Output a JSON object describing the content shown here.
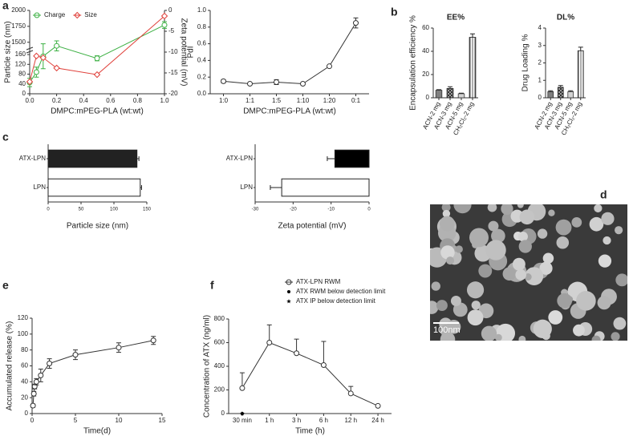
{
  "chart_data": [
    {
      "type": "line",
      "panel_label": "a",
      "xlabel": "DMPC:mPEG-PLA (wt:wt)",
      "ylabel": "Particle size (nm)",
      "y2label": "Zeta potential (mV)",
      "x": [
        0,
        0.05,
        0.1,
        0.2,
        0.5,
        1.0
      ],
      "xlim": [
        0,
        1
      ],
      "xticks": [
        {
          "value": 0,
          "label": "0.0"
        },
        {
          "value": 0.2,
          "label": "0.2"
        },
        {
          "value": 0.4,
          "label": "0.4"
        },
        {
          "value": 0.6,
          "label": "0.6"
        },
        {
          "value": 0.8,
          "label": "0.8"
        },
        {
          "value": 1,
          "label": "1.0"
        }
      ],
      "ylim": [
        0,
        2000
      ],
      "ybreak": [
        170,
        1450
      ],
      "yticks": [
        0,
        40,
        80,
        120,
        160,
        1500,
        1750,
        2000
      ],
      "y2lim": [
        -20,
        0
      ],
      "y2ticks": [
        -20,
        -15,
        -10,
        -5,
        0
      ],
      "legend": "top-left",
      "error_direction": "both",
      "series": [
        {
          "name": "Charge",
          "color": "#3cb043",
          "marker": "circle",
          "axis": "y2",
          "values": [
            -17.3,
            -14.8,
            -11,
            -8.5,
            -11.5,
            -3.5
          ],
          "errors": [
            1,
            1.2,
            3,
            1.2,
            0.6,
            0.8
          ]
        },
        {
          "name": "Size",
          "color": "#e0413b",
          "marker": "diamond",
          "values": [
            49,
            154,
            147,
            105,
            78,
            1912
          ]
        }
      ]
    },
    {
      "type": "line",
      "ylabel": "PdI",
      "xlabel": "DMPC:mPEG-PLA (wt:wt)",
      "categories": [
        "1:0",
        "1:1",
        "1:5",
        "1:10",
        "1:20",
        "0:1"
      ],
      "ylim": [
        0,
        1
      ],
      "yticks": [
        {
          "value": 0,
          "label": "0.0"
        },
        {
          "value": 0.2,
          "label": "0.2"
        },
        {
          "value": 0.4,
          "label": "0.4"
        },
        {
          "value": 0.6,
          "label": "0.6"
        },
        {
          "value": 0.8,
          "label": "0.8"
        },
        {
          "value": 1,
          "label": "1.0"
        }
      ],
      "error_direction": "both",
      "series": [
        {
          "color": "#333333",
          "marker": "circle",
          "values": [
            0.15,
            0.12,
            0.14,
            0.12,
            0.33,
            0.85
          ],
          "errors": [
            0.02,
            0.01,
            0.03,
            0.01,
            0.01,
            0.06
          ]
        }
      ]
    },
    {
      "type": "bar",
      "panel_label": "b",
      "title": "EE%",
      "ylabel": "Encapsulation efficiency %",
      "categories": [
        "ACN-2 mg",
        "ACN-3 mg",
        "ACN-5 mg",
        "CH₂Cl₂-2 mg"
      ],
      "values": [
        6.5,
        8,
        3.5,
        52
      ],
      "errors": [
        0.5,
        1.5,
        0.5,
        3
      ],
      "colors": [
        "#7f7f7f",
        "#9a9a9a",
        "#d3d3d3",
        "#ffffff"
      ],
      "hatches": [
        null,
        "checker",
        null,
        "vertical"
      ],
      "ylim": [
        0,
        60
      ],
      "yticks": [
        0,
        20,
        40,
        60
      ]
    },
    {
      "type": "bar",
      "title": "DL%",
      "ylabel": "Drug Loading %",
      "categories": [
        "ACN-2 mg",
        "ACN-3 mg",
        "ACN-5 mg",
        "CH₂Cl₂-2 mg"
      ],
      "values": [
        0.35,
        0.6,
        0.35,
        2.7
      ],
      "errors": [
        0.05,
        0.1,
        0.05,
        0.2
      ],
      "colors": [
        "#7f7f7f",
        "#9a9a9a",
        "#d3d3d3",
        "#ffffff"
      ],
      "hatches": [
        null,
        "checker",
        null,
        "vertical"
      ],
      "ylim": [
        0,
        4
      ],
      "yticks": [
        0,
        1,
        2,
        3,
        4
      ]
    },
    {
      "type": "barh",
      "panel_label": "c",
      "xlabel": "Particle size (nm)",
      "categories": [
        "ATX-LPN",
        "LPN"
      ],
      "values": [
        135,
        140
      ],
      "errors": [
        3,
        2
      ],
      "colors": [
        "#222222",
        "#ffffff"
      ],
      "xlim": [
        0,
        150
      ],
      "xticks": [
        0,
        50,
        100,
        150
      ]
    },
    {
      "type": "barh",
      "xlabel": "Zeta potential (mV)",
      "categories": [
        "ATX-LPN",
        "LPN"
      ],
      "values": [
        -9,
        -23
      ],
      "errors": [
        2,
        3
      ],
      "colors": [
        "#000000",
        "#ffffff"
      ],
      "xlim": [
        -30,
        0
      ],
      "xticks": [
        -30,
        -20,
        -10,
        0
      ]
    },
    {
      "type": "line",
      "panel_label": "e",
      "xlabel": "Time(d)",
      "ylabel": "Accumulated release (%)",
      "x": [
        0.1,
        0.2,
        0.3,
        0.5,
        1,
        2,
        5,
        10,
        14
      ],
      "xlim": [
        0,
        15
      ],
      "xticks": [
        0,
        5,
        10,
        15
      ],
      "ylim": [
        0,
        120
      ],
      "yticks": [
        0,
        20,
        40,
        60,
        80,
        100,
        120
      ],
      "error_direction": "both",
      "series": [
        {
          "color": "#333333",
          "marker": "circle",
          "values": [
            10,
            25,
            34,
            40,
            48,
            63,
            74,
            83,
            92
          ],
          "errors": [
            2,
            3,
            3,
            4,
            8,
            6,
            6,
            6,
            5
          ]
        }
      ]
    },
    {
      "type": "line",
      "panel_label": "f",
      "xlabel": "Time (h)",
      "ylabel": "Concentration of ATX (ng/ml)",
      "categories": [
        "30 min",
        "1 h",
        "3 h",
        "6 h",
        "12 h",
        "24 h"
      ],
      "ylim": [
        0,
        800
      ],
      "yticks": [
        0,
        200,
        400,
        600,
        800
      ],
      "legend": "top-right",
      "error_direction": "up",
      "series": [
        {
          "name": "ATX-LPN RWM",
          "color": "#333333",
          "marker": "circle",
          "values": [
            215,
            600,
            510,
            410,
            170,
            65
          ],
          "errors": [
            130,
            150,
            120,
            200,
            60,
            0
          ]
        },
        {
          "name": "ATX  RWM  below detection limit",
          "color": "#000000",
          "marker": "dot",
          "values": [
            0,
            null,
            null,
            null,
            null,
            null
          ]
        },
        {
          "name": "ATX  IP below detection limit",
          "color": "#000000",
          "marker": "star",
          "values": [
            0,
            null,
            null,
            null,
            null,
            null
          ]
        }
      ]
    }
  ],
  "figure_d": {
    "panel_label": "d",
    "scale_bar": "100nm"
  }
}
